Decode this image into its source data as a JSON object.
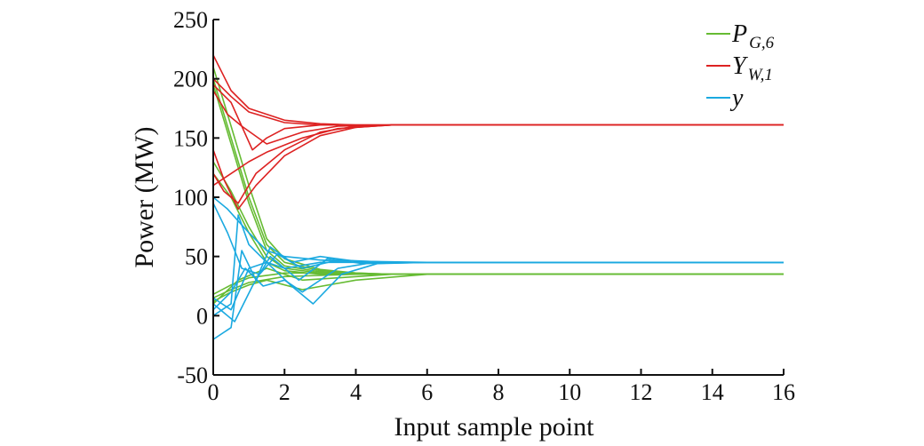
{
  "chart_data": {
    "type": "line",
    "title": "",
    "xlabel": "Input sample point",
    "ylabel": "Power (MW)",
    "xlim": [
      0,
      16
    ],
    "ylim": [
      -50,
      250
    ],
    "xticks": [
      "0",
      "2",
      "4",
      "6",
      "8",
      "10",
      "12",
      "14",
      "16"
    ],
    "yticks": [
      "-50",
      "0",
      "50",
      "100",
      "150",
      "200",
      "250"
    ],
    "grid": false,
    "legend_position": "top-right",
    "legend": [
      {
        "main": "P",
        "sub": "G,6",
        "color": "#66bb33"
      },
      {
        "main": "Y",
        "sub": "W,1",
        "color": "#dd2222"
      },
      {
        "main": "y",
        "sub": "",
        "color": "#1aa9e0"
      }
    ],
    "series": [
      {
        "group": "P_G6",
        "color": "#66bb33",
        "x": [
          0,
          0.5,
          1,
          1.5,
          2,
          3,
          4,
          5,
          6,
          16
        ],
        "y": [
          200,
          150,
          100,
          60,
          45,
          38,
          36,
          35,
          35,
          35
        ]
      },
      {
        "group": "P_G6",
        "color": "#66bb33",
        "x": [
          0,
          0.5,
          1,
          1.5,
          2,
          3,
          4,
          5,
          6,
          16
        ],
        "y": [
          195,
          145,
          95,
          55,
          42,
          37,
          35,
          35,
          35,
          35
        ]
      },
      {
        "group": "P_G6",
        "color": "#66bb33",
        "x": [
          0,
          0.5,
          1,
          1.5,
          2,
          3,
          4,
          5,
          6,
          16
        ],
        "y": [
          210,
          160,
          110,
          65,
          48,
          39,
          36,
          35,
          35,
          35
        ]
      },
      {
        "group": "P_G6",
        "color": "#66bb33",
        "x": [
          0,
          0.5,
          1,
          1.5,
          2,
          3,
          4,
          6,
          16
        ],
        "y": [
          130,
          105,
          75,
          50,
          40,
          36,
          35,
          35,
          35
        ]
      },
      {
        "group": "P_G6",
        "color": "#66bb33",
        "x": [
          0,
          0.5,
          1,
          1.5,
          2,
          3,
          4,
          6,
          16
        ],
        "y": [
          120,
          100,
          70,
          45,
          38,
          35,
          35,
          35,
          35
        ]
      },
      {
        "group": "P_G6",
        "color": "#66bb33",
        "x": [
          0,
          0.5,
          1,
          2,
          3,
          4,
          6,
          16
        ],
        "y": [
          15,
          22,
          28,
          33,
          34,
          35,
          35,
          35
        ]
      },
      {
        "group": "P_G6",
        "color": "#66bb33",
        "x": [
          0,
          0.5,
          1,
          2,
          3,
          4,
          6,
          16
        ],
        "y": [
          18,
          26,
          32,
          36,
          36,
          35,
          35,
          35
        ]
      },
      {
        "group": "P_G6",
        "color": "#66bb33",
        "x": [
          0,
          0.5,
          1,
          1.5,
          2.5,
          4,
          6,
          16
        ],
        "y": [
          12,
          20,
          26,
          30,
          22,
          30,
          35,
          35
        ]
      },
      {
        "group": "P_G6",
        "color": "#66bb33",
        "x": [
          0,
          0.7,
          1.5,
          2.5,
          3.5,
          5,
          16
        ],
        "y": [
          10,
          30,
          40,
          30,
          32,
          35,
          35
        ]
      },
      {
        "group": "Y_W1",
        "color": "#dd2222",
        "x": [
          0,
          0.5,
          1,
          2,
          3,
          4,
          5,
          6,
          16
        ],
        "y": [
          220,
          190,
          175,
          165,
          162,
          161,
          161,
          161,
          161
        ]
      },
      {
        "group": "Y_W1",
        "color": "#dd2222",
        "x": [
          0,
          0.5,
          1,
          2,
          3,
          4,
          5,
          16
        ],
        "y": [
          200,
          185,
          172,
          163,
          161,
          161,
          161,
          161
        ]
      },
      {
        "group": "Y_W1",
        "color": "#dd2222",
        "x": [
          0,
          0.5,
          1.1,
          1.5,
          2,
          3,
          4,
          5,
          16
        ],
        "y": [
          195,
          180,
          140,
          150,
          158,
          161,
          161,
          161,
          161
        ]
      },
      {
        "group": "Y_W1",
        "color": "#dd2222",
        "x": [
          0,
          0.4,
          0.8,
          1.5,
          2.5,
          3.5,
          5,
          16
        ],
        "y": [
          190,
          170,
          160,
          145,
          155,
          160,
          161,
          161
        ]
      },
      {
        "group": "Y_W1",
        "color": "#dd2222",
        "x": [
          0,
          0.3,
          0.7,
          1.2,
          2,
          3,
          4,
          5,
          16
        ],
        "y": [
          140,
          115,
          90,
          110,
          135,
          152,
          159,
          161,
          161
        ]
      },
      {
        "group": "Y_W1",
        "color": "#dd2222",
        "x": [
          0,
          0.3,
          0.7,
          1.2,
          2,
          3,
          4,
          5,
          16
        ],
        "y": [
          120,
          105,
          95,
          120,
          140,
          155,
          160,
          161,
          161
        ]
      },
      {
        "group": "Y_W1",
        "color": "#dd2222",
        "x": [
          0,
          0.5,
          1,
          1.5,
          2.5,
          3.5,
          5,
          16
        ],
        "y": [
          110,
          120,
          130,
          138,
          150,
          158,
          161,
          161
        ]
      },
      {
        "group": "y",
        "color": "#1aa9e0",
        "x": [
          0,
          0.4,
          0.7,
          1,
          1.5,
          2,
          3,
          4,
          5,
          6,
          16
        ],
        "y": [
          100,
          90,
          80,
          70,
          55,
          50,
          47,
          45,
          45,
          45,
          45
        ]
      },
      {
        "group": "y",
        "color": "#1aa9e0",
        "x": [
          0,
          0.5,
          0.7,
          1,
          1.5,
          2,
          3,
          4,
          6,
          16
        ],
        "y": [
          0,
          10,
          85,
          60,
          45,
          40,
          45,
          45,
          45,
          45
        ]
      },
      {
        "group": "y",
        "color": "#1aa9e0",
        "x": [
          0,
          0.5,
          0.8,
          1.2,
          1.6,
          2.2,
          3,
          4,
          6,
          16
        ],
        "y": [
          -20,
          -10,
          55,
          30,
          58,
          45,
          50,
          46,
          45,
          45
        ]
      },
      {
        "group": "y",
        "color": "#1aa9e0",
        "x": [
          0,
          0.5,
          0.9,
          1.4,
          2,
          2.5,
          3.5,
          4.5,
          6,
          16
        ],
        "y": [
          5,
          20,
          40,
          25,
          30,
          20,
          40,
          45,
          45,
          45
        ]
      },
      {
        "group": "y",
        "color": "#1aa9e0",
        "x": [
          0,
          0.6,
          1.1,
          1.6,
          2.4,
          3.2,
          4.2,
          6,
          16
        ],
        "y": [
          10,
          -5,
          25,
          50,
          30,
          48,
          44,
          45,
          45
        ]
      },
      {
        "group": "y",
        "color": "#1aa9e0",
        "x": [
          0,
          0.5,
          1,
          1.5,
          2.2,
          2.8,
          3.6,
          4.6,
          6,
          16
        ],
        "y": [
          15,
          5,
          40,
          45,
          25,
          10,
          35,
          44,
          45,
          45
        ]
      },
      {
        "group": "y",
        "color": "#1aa9e0",
        "x": [
          0,
          0.4,
          0.8,
          1.3,
          1.8,
          2.5,
          3.5,
          5,
          16
        ],
        "y": [
          95,
          70,
          40,
          35,
          52,
          40,
          47,
          45,
          45
        ]
      }
    ]
  }
}
